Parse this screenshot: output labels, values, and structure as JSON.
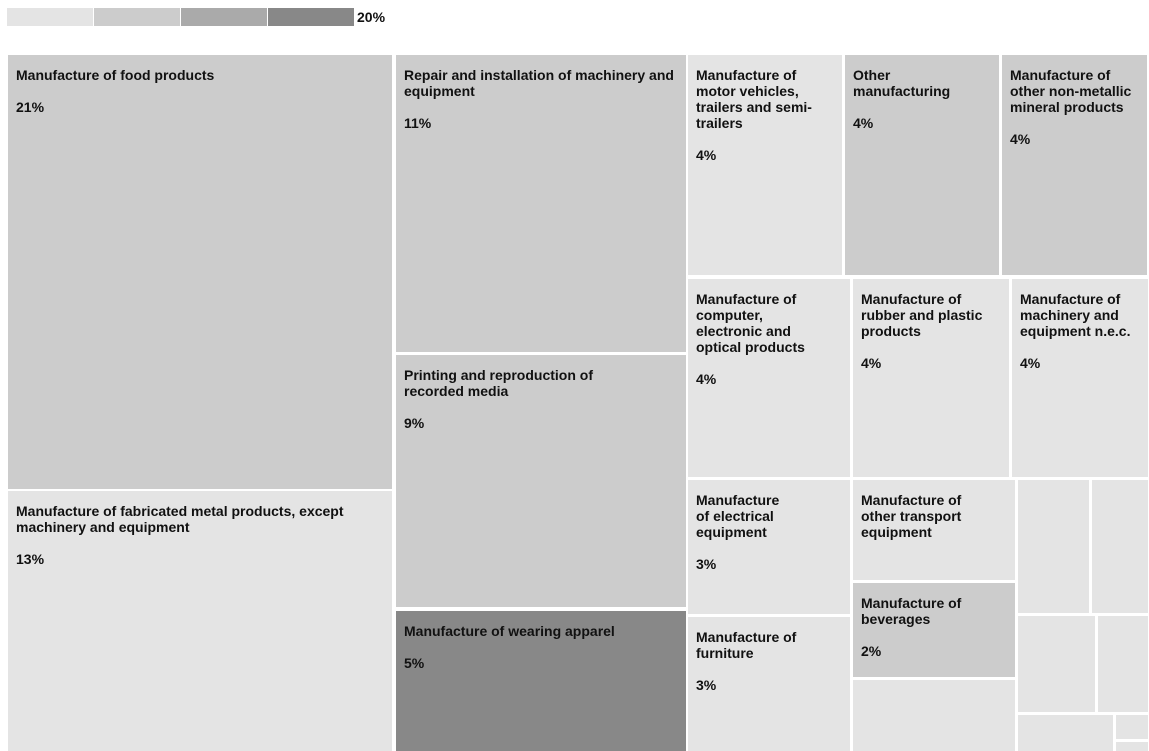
{
  "legend": {
    "max_label": "20%",
    "colors": [
      "#e4e4e4",
      "#cccccc",
      "#aaaaaa",
      "#888888"
    ]
  },
  "chart_data": {
    "type": "treemap",
    "title": "",
    "items": [
      {
        "name": "Manufacture of food products",
        "value": 21,
        "label": "21%",
        "color": "#cccccc"
      },
      {
        "name": "Manufacture of fabricated metal products, except machinery and equipment",
        "value": 13,
        "label": "13%",
        "color": "#e4e4e4"
      },
      {
        "name": "Repair and installation of machinery and equipment",
        "value": 11,
        "label": "11%",
        "color": "#cccccc"
      },
      {
        "name": "Printing and reproduction of recorded media",
        "value": 9,
        "label": "9%",
        "color": "#cccccc"
      },
      {
        "name": "Manufacture of wearing apparel",
        "value": 5,
        "label": "5%",
        "color": "#888888"
      },
      {
        "name": "Manufacture of motor vehicles, trailers and semi- trailers",
        "value": 4,
        "label": "4%",
        "color": "#e4e4e4"
      },
      {
        "name": "Other manufacturing",
        "value": 4,
        "label": "4%",
        "color": "#cccccc"
      },
      {
        "name": "Manufacture of other non-metallic mineral products",
        "value": 4,
        "label": "4%",
        "color": "#cccccc"
      },
      {
        "name": "Manufacture of computer, electronic and optical products",
        "value": 4,
        "label": "4%",
        "color": "#e4e4e4"
      },
      {
        "name": "Manufacture of rubber and plastic products",
        "value": 4,
        "label": "4%",
        "color": "#e4e4e4"
      },
      {
        "name": "Manufacture of machinery and equipment n.e.c.",
        "value": 4,
        "label": "4%",
        "color": "#e4e4e4"
      },
      {
        "name": "Manufacture of electrical equipment",
        "value": 3,
        "label": "3%",
        "color": "#e4e4e4"
      },
      {
        "name": "Manufacture of other transport equipment",
        "value": 3,
        "label": "",
        "color": "#e4e4e4"
      },
      {
        "name": "Manufacture of furniture",
        "value": 3,
        "label": "3%",
        "color": "#e4e4e4"
      },
      {
        "name": "Manufacture of beverages",
        "value": 2,
        "label": "2%",
        "color": "#cccccc"
      },
      {
        "name": "",
        "value": 2,
        "label": "",
        "color": "#e4e4e4"
      },
      {
        "name": "",
        "value": 1,
        "label": "",
        "color": "#e4e4e4"
      },
      {
        "name": "",
        "value": 1,
        "label": "",
        "color": "#e4e4e4"
      },
      {
        "name": "",
        "value": 1,
        "label": "",
        "color": "#e4e4e4"
      },
      {
        "name": "",
        "value": 1,
        "label": "",
        "color": "#e4e4e4"
      },
      {
        "name": "",
        "value": 1,
        "label": "",
        "color": "#e4e4e4"
      },
      {
        "name": "",
        "value": 0.3,
        "label": "",
        "color": "#e4e4e4"
      },
      {
        "name": "",
        "value": 0.2,
        "label": "",
        "color": "#e4e4e4"
      }
    ]
  }
}
